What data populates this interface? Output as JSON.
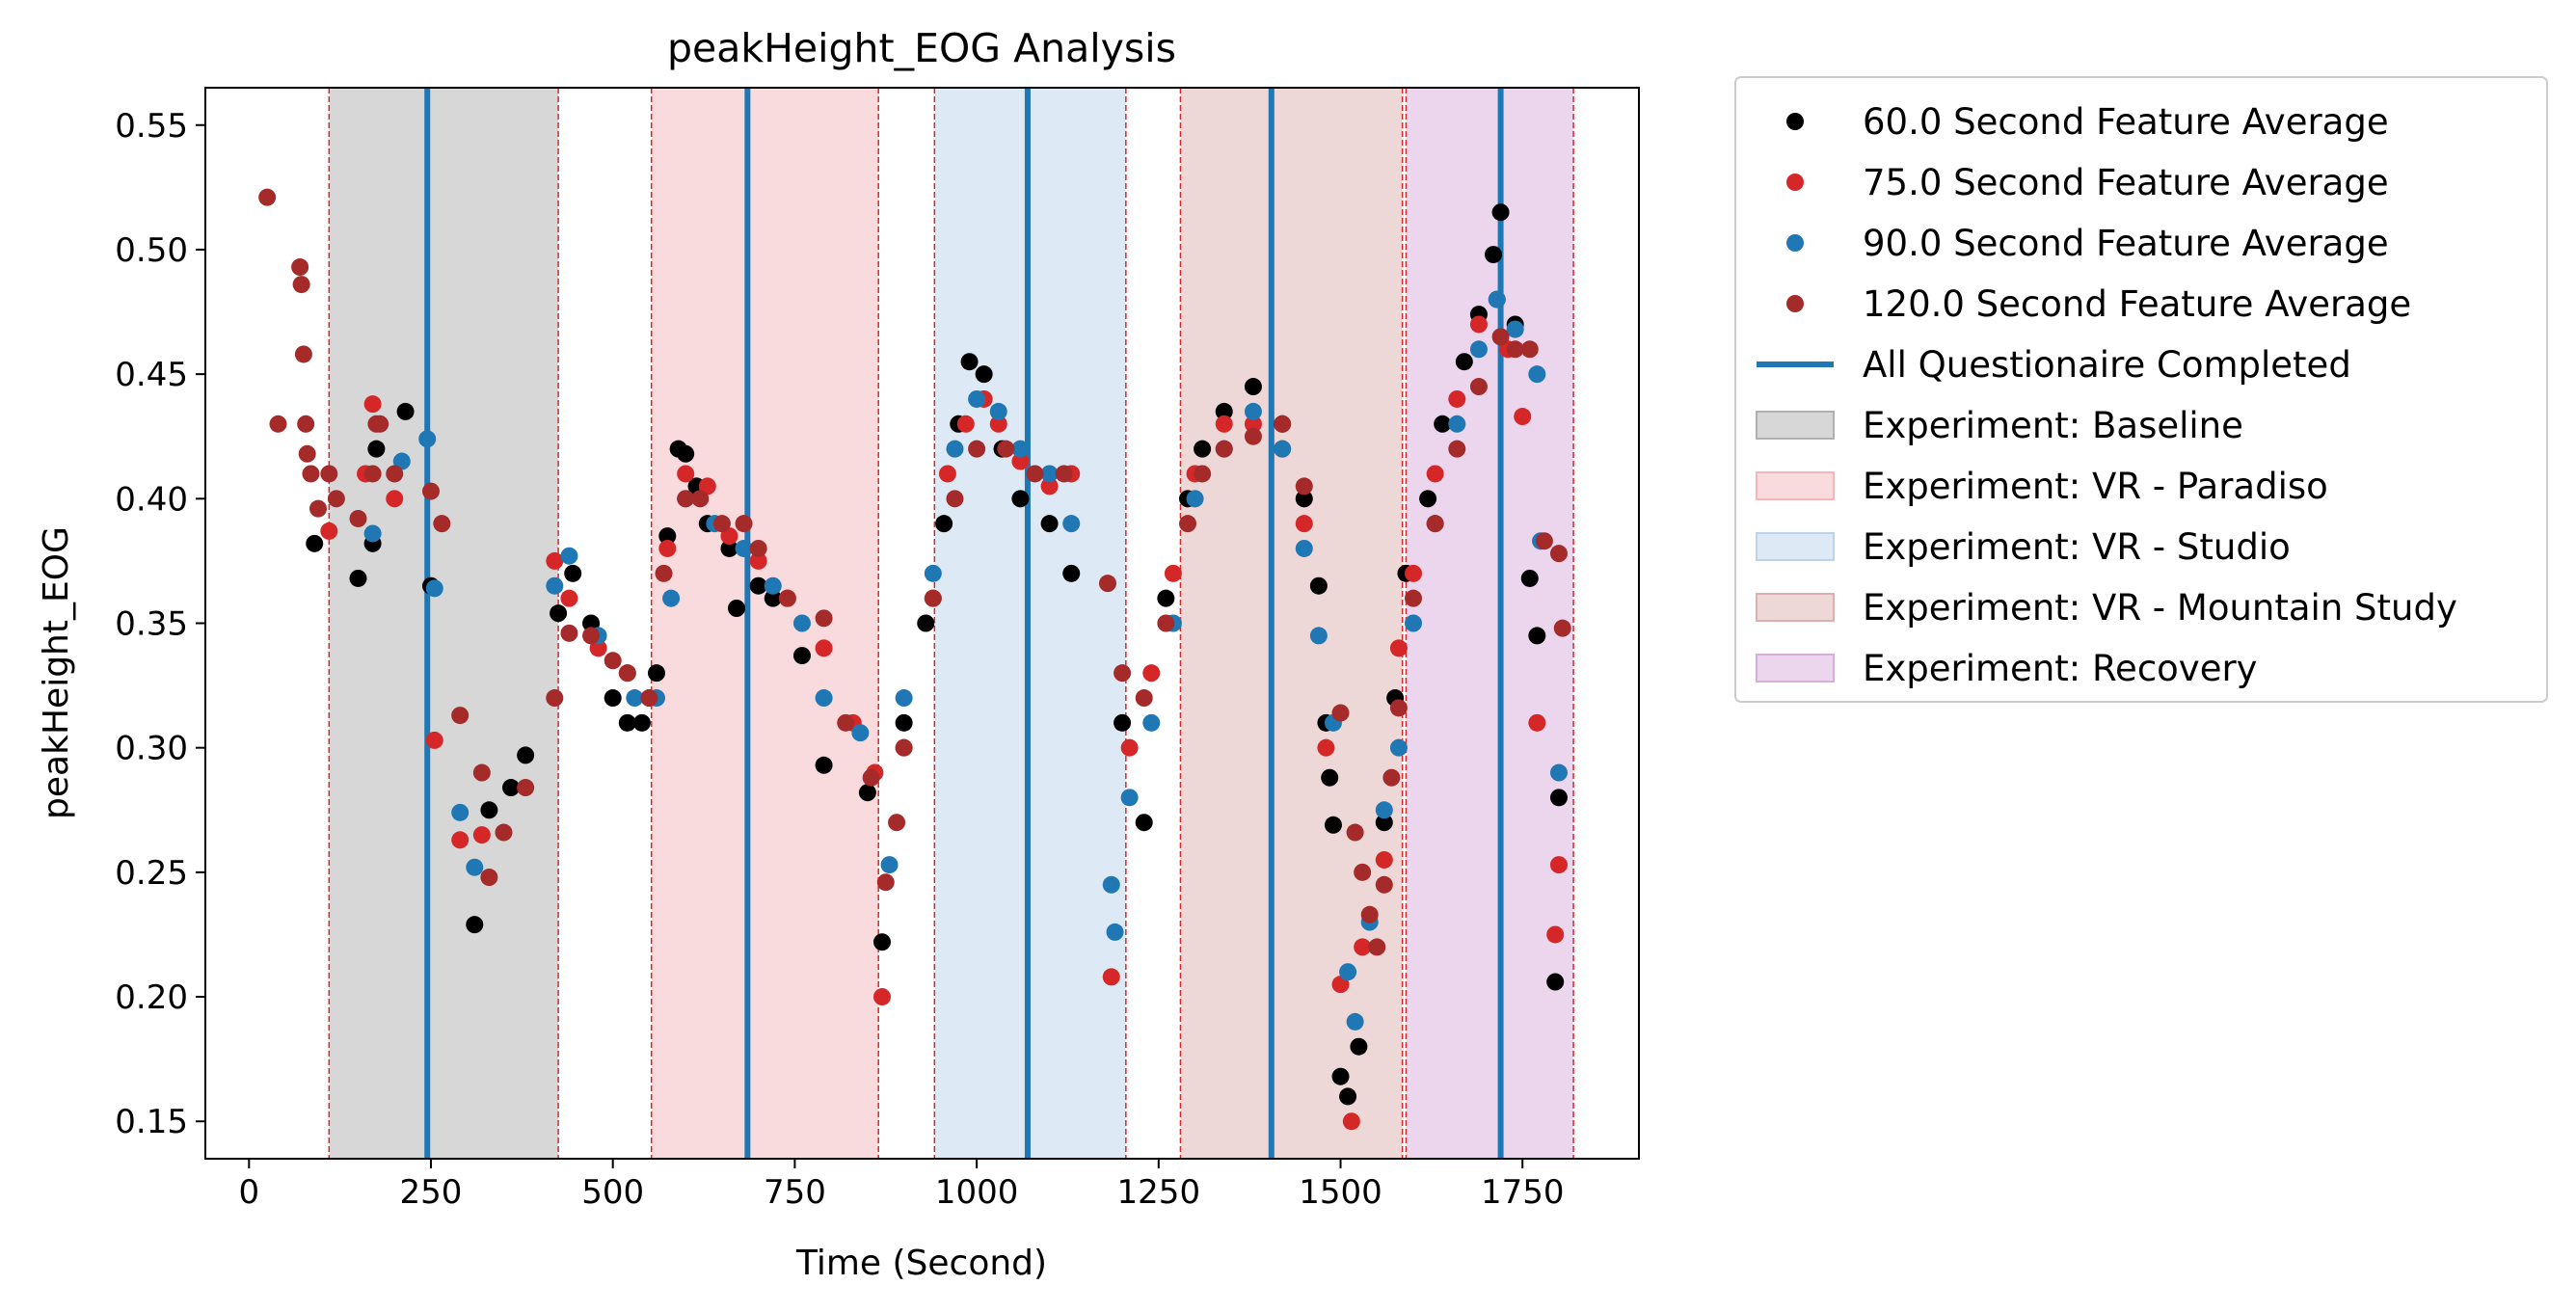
{
  "chart_data": {
    "type": "scatter",
    "title": "peakHeight_EOG Analysis",
    "xlabel": "Time (Second)",
    "ylabel": "peakHeight_EOG",
    "xlim": [
      -60,
      1910
    ],
    "ylim": [
      0.135,
      0.565
    ],
    "xticks": [
      0,
      250,
      500,
      750,
      1000,
      1250,
      1500,
      1750
    ],
    "yticks": [
      0.15,
      0.2,
      0.25,
      0.3,
      0.35,
      0.4,
      0.45,
      0.5,
      0.55
    ],
    "xtick_labels": [
      "0",
      "250",
      "500",
      "750",
      "1000",
      "1250",
      "1500",
      "1750"
    ],
    "ytick_labels": [
      "0.15",
      "0.20",
      "0.25",
      "0.30",
      "0.35",
      "0.40",
      "0.45",
      "0.50",
      "0.55"
    ],
    "grid": false,
    "legend_position": "outside-right",
    "phases": [
      {
        "name": "Experiment: Baseline",
        "start": 110,
        "end": 425,
        "color": "#b0b0b0"
      },
      {
        "name": "Experiment: VR - Paradiso",
        "start": 553,
        "end": 865,
        "color": "#f4b6bb"
      },
      {
        "name": "Experiment: VR - Studio",
        "start": 942,
        "end": 1205,
        "color": "#bcd4ea"
      },
      {
        "name": "Experiment: VR - Mountain Study",
        "start": 1280,
        "end": 1585,
        "color": "#dcb0b0"
      },
      {
        "name": "Experiment: Recovery",
        "start": 1590,
        "end": 1820,
        "color": "#d7aedb"
      }
    ],
    "phase_boundaries": [
      110,
      425,
      553,
      865,
      942,
      1205,
      1280,
      1585,
      1590,
      1820
    ],
    "questionnaire_completed": {
      "name": "All Questionaire Completed",
      "x": [
        245,
        685,
        1070,
        1405,
        1720
      ],
      "color": "#1f77b4"
    },
    "series": [
      {
        "name": "60.0 Second Feature Average",
        "color": "#000000",
        "points": [
          [
            90,
            0.382
          ],
          [
            150,
            0.368
          ],
          [
            170,
            0.382
          ],
          [
            175,
            0.42
          ],
          [
            215,
            0.435
          ],
          [
            250,
            0.365
          ],
          [
            310,
            0.229
          ],
          [
            330,
            0.275
          ],
          [
            360,
            0.284
          ],
          [
            380,
            0.297
          ],
          [
            425,
            0.354
          ],
          [
            445,
            0.37
          ],
          [
            470,
            0.35
          ],
          [
            500,
            0.32
          ],
          [
            520,
            0.31
          ],
          [
            540,
            0.31
          ],
          [
            560,
            0.33
          ],
          [
            575,
            0.385
          ],
          [
            590,
            0.42
          ],
          [
            600,
            0.418
          ],
          [
            615,
            0.405
          ],
          [
            630,
            0.39
          ],
          [
            660,
            0.38
          ],
          [
            670,
            0.356
          ],
          [
            700,
            0.365
          ],
          [
            720,
            0.36
          ],
          [
            760,
            0.337
          ],
          [
            790,
            0.293
          ],
          [
            850,
            0.282
          ],
          [
            870,
            0.222
          ],
          [
            900,
            0.31
          ],
          [
            930,
            0.35
          ],
          [
            955,
            0.39
          ],
          [
            975,
            0.43
          ],
          [
            990,
            0.455
          ],
          [
            1010,
            0.45
          ],
          [
            1035,
            0.42
          ],
          [
            1060,
            0.4
          ],
          [
            1100,
            0.39
          ],
          [
            1130,
            0.37
          ],
          [
            1200,
            0.31
          ],
          [
            1230,
            0.27
          ],
          [
            1260,
            0.36
          ],
          [
            1290,
            0.4
          ],
          [
            1310,
            0.42
          ],
          [
            1340,
            0.435
          ],
          [
            1380,
            0.445
          ],
          [
            1420,
            0.43
          ],
          [
            1450,
            0.4
          ],
          [
            1470,
            0.365
          ],
          [
            1480,
            0.31
          ],
          [
            1485,
            0.288
          ],
          [
            1490,
            0.269
          ],
          [
            1500,
            0.168
          ],
          [
            1510,
            0.16
          ],
          [
            1525,
            0.18
          ],
          [
            1560,
            0.27
          ],
          [
            1575,
            0.32
          ],
          [
            1590,
            0.37
          ],
          [
            1620,
            0.4
          ],
          [
            1640,
            0.43
          ],
          [
            1670,
            0.455
          ],
          [
            1690,
            0.474
          ],
          [
            1710,
            0.498
          ],
          [
            1720,
            0.515
          ],
          [
            1740,
            0.47
          ],
          [
            1760,
            0.368
          ],
          [
            1770,
            0.345
          ],
          [
            1795,
            0.206
          ],
          [
            1800,
            0.28
          ]
        ]
      },
      {
        "name": "75.0 Second Feature Average",
        "color": "#d62728",
        "points": [
          [
            110,
            0.387
          ],
          [
            160,
            0.41
          ],
          [
            170,
            0.438
          ],
          [
            200,
            0.4
          ],
          [
            255,
            0.303
          ],
          [
            290,
            0.263
          ],
          [
            320,
            0.265
          ],
          [
            420,
            0.375
          ],
          [
            440,
            0.36
          ],
          [
            480,
            0.34
          ],
          [
            520,
            0.33
          ],
          [
            550,
            0.32
          ],
          [
            575,
            0.38
          ],
          [
            600,
            0.41
          ],
          [
            630,
            0.405
          ],
          [
            660,
            0.385
          ],
          [
            700,
            0.375
          ],
          [
            740,
            0.36
          ],
          [
            790,
            0.34
          ],
          [
            830,
            0.31
          ],
          [
            860,
            0.29
          ],
          [
            870,
            0.2
          ],
          [
            900,
            0.3
          ],
          [
            940,
            0.36
          ],
          [
            960,
            0.41
          ],
          [
            985,
            0.43
          ],
          [
            1010,
            0.44
          ],
          [
            1030,
            0.43
          ],
          [
            1060,
            0.415
          ],
          [
            1100,
            0.405
          ],
          [
            1130,
            0.41
          ],
          [
            1185,
            0.208
          ],
          [
            1210,
            0.3
          ],
          [
            1240,
            0.33
          ],
          [
            1270,
            0.37
          ],
          [
            1300,
            0.41
          ],
          [
            1340,
            0.43
          ],
          [
            1380,
            0.43
          ],
          [
            1420,
            0.42
          ],
          [
            1450,
            0.39
          ],
          [
            1480,
            0.3
          ],
          [
            1500,
            0.205
          ],
          [
            1515,
            0.15
          ],
          [
            1530,
            0.22
          ],
          [
            1560,
            0.255
          ],
          [
            1580,
            0.34
          ],
          [
            1600,
            0.37
          ],
          [
            1630,
            0.41
          ],
          [
            1660,
            0.44
          ],
          [
            1690,
            0.47
          ],
          [
            1715,
            0.48
          ],
          [
            1730,
            0.46
          ],
          [
            1750,
            0.433
          ],
          [
            1770,
            0.31
          ],
          [
            1795,
            0.225
          ],
          [
            1800,
            0.253
          ]
        ]
      },
      {
        "name": "90.0 Second Feature Average",
        "color": "#1f77b4",
        "points": [
          [
            170,
            0.386
          ],
          [
            210,
            0.415
          ],
          [
            245,
            0.424
          ],
          [
            255,
            0.364
          ],
          [
            290,
            0.274
          ],
          [
            310,
            0.252
          ],
          [
            420,
            0.365
          ],
          [
            440,
            0.377
          ],
          [
            480,
            0.345
          ],
          [
            530,
            0.32
          ],
          [
            560,
            0.32
          ],
          [
            580,
            0.36
          ],
          [
            600,
            0.4
          ],
          [
            640,
            0.39
          ],
          [
            680,
            0.38
          ],
          [
            720,
            0.365
          ],
          [
            760,
            0.35
          ],
          [
            790,
            0.32
          ],
          [
            840,
            0.306
          ],
          [
            880,
            0.253
          ],
          [
            900,
            0.32
          ],
          [
            940,
            0.37
          ],
          [
            970,
            0.42
          ],
          [
            1000,
            0.44
          ],
          [
            1030,
            0.435
          ],
          [
            1060,
            0.42
          ],
          [
            1100,
            0.41
          ],
          [
            1130,
            0.39
          ],
          [
            1185,
            0.245
          ],
          [
            1190,
            0.226
          ],
          [
            1210,
            0.28
          ],
          [
            1240,
            0.31
          ],
          [
            1270,
            0.35
          ],
          [
            1300,
            0.4
          ],
          [
            1340,
            0.42
          ],
          [
            1380,
            0.435
          ],
          [
            1420,
            0.42
          ],
          [
            1450,
            0.38
          ],
          [
            1470,
            0.345
          ],
          [
            1490,
            0.31
          ],
          [
            1510,
            0.21
          ],
          [
            1520,
            0.19
          ],
          [
            1540,
            0.23
          ],
          [
            1560,
            0.275
          ],
          [
            1580,
            0.3
          ],
          [
            1600,
            0.35
          ],
          [
            1630,
            0.39
          ],
          [
            1660,
            0.43
          ],
          [
            1690,
            0.46
          ],
          [
            1715,
            0.48
          ],
          [
            1740,
            0.468
          ],
          [
            1770,
            0.45
          ],
          [
            1775,
            0.383
          ],
          [
            1800,
            0.29
          ]
        ]
      },
      {
        "name": "120.0 Second Feature Average",
        "color": "#a52a2a",
        "points": [
          [
            25,
            0.521
          ],
          [
            40,
            0.43
          ],
          [
            70,
            0.493
          ],
          [
            72,
            0.486
          ],
          [
            75,
            0.458
          ],
          [
            78,
            0.43
          ],
          [
            80,
            0.418
          ],
          [
            85,
            0.41
          ],
          [
            95,
            0.396
          ],
          [
            110,
            0.41
          ],
          [
            120,
            0.4
          ],
          [
            150,
            0.392
          ],
          [
            170,
            0.41
          ],
          [
            175,
            0.43
          ],
          [
            180,
            0.43
          ],
          [
            200,
            0.41
          ],
          [
            250,
            0.403
          ],
          [
            265,
            0.39
          ],
          [
            290,
            0.313
          ],
          [
            320,
            0.29
          ],
          [
            330,
            0.248
          ],
          [
            350,
            0.266
          ],
          [
            380,
            0.284
          ],
          [
            420,
            0.32
          ],
          [
            440,
            0.346
          ],
          [
            470,
            0.345
          ],
          [
            500,
            0.335
          ],
          [
            520,
            0.33
          ],
          [
            550,
            0.32
          ],
          [
            570,
            0.37
          ],
          [
            600,
            0.4
          ],
          [
            620,
            0.4
          ],
          [
            650,
            0.39
          ],
          [
            680,
            0.39
          ],
          [
            700,
            0.38
          ],
          [
            740,
            0.36
          ],
          [
            790,
            0.352
          ],
          [
            820,
            0.31
          ],
          [
            855,
            0.288
          ],
          [
            875,
            0.246
          ],
          [
            890,
            0.27
          ],
          [
            900,
            0.3
          ],
          [
            940,
            0.36
          ],
          [
            970,
            0.4
          ],
          [
            1000,
            0.42
          ],
          [
            1040,
            0.42
          ],
          [
            1080,
            0.41
          ],
          [
            1120,
            0.41
          ],
          [
            1180,
            0.366
          ],
          [
            1200,
            0.33
          ],
          [
            1230,
            0.32
          ],
          [
            1260,
            0.35
          ],
          [
            1290,
            0.39
          ],
          [
            1310,
            0.41
          ],
          [
            1340,
            0.42
          ],
          [
            1380,
            0.425
          ],
          [
            1420,
            0.43
          ],
          [
            1450,
            0.405
          ],
          [
            1500,
            0.314
          ],
          [
            1520,
            0.266
          ],
          [
            1530,
            0.25
          ],
          [
            1540,
            0.233
          ],
          [
            1550,
            0.22
          ],
          [
            1560,
            0.245
          ],
          [
            1570,
            0.288
          ],
          [
            1580,
            0.316
          ],
          [
            1600,
            0.36
          ],
          [
            1630,
            0.39
          ],
          [
            1660,
            0.42
          ],
          [
            1690,
            0.445
          ],
          [
            1720,
            0.465
          ],
          [
            1740,
            0.46
          ],
          [
            1760,
            0.46
          ],
          [
            1780,
            0.383
          ],
          [
            1800,
            0.378
          ],
          [
            1805,
            0.348
          ]
        ]
      }
    ]
  }
}
